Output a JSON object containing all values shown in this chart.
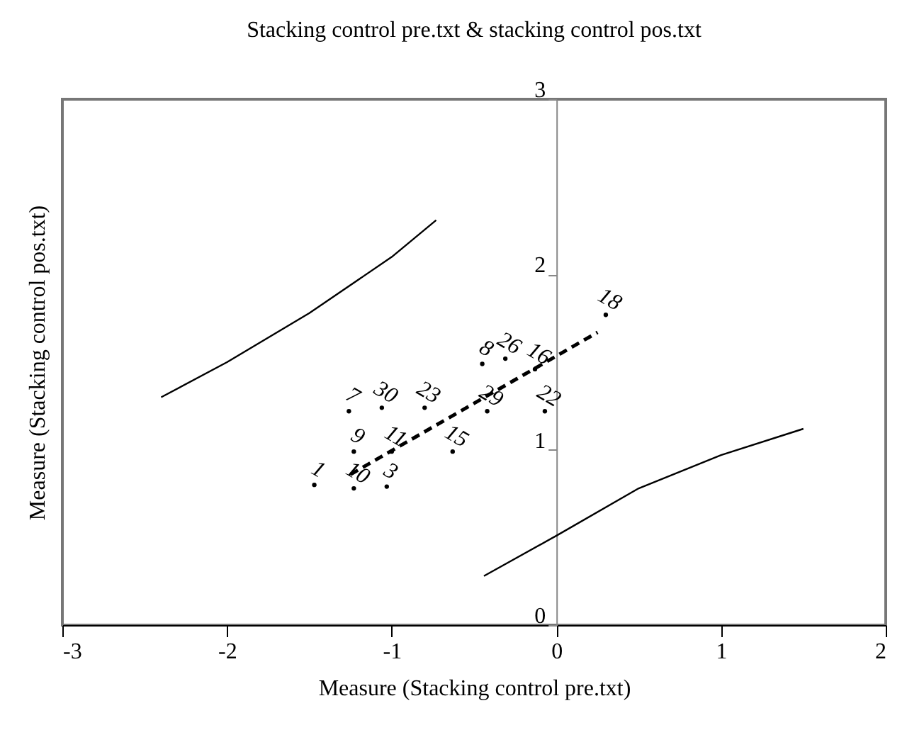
{
  "chart_data": {
    "type": "line",
    "title": "Stacking control pre.txt & stacking control pos.txt",
    "xlabel": "Measure (Stacking control pre.txt)",
    "ylabel": "Measure (Stacking control pos.txt)",
    "xlim": [
      -3,
      2
    ],
    "ylim": [
      0,
      3
    ],
    "xticks": [
      -3,
      -2,
      -1,
      0,
      1,
      2
    ],
    "yticks": [
      0,
      1,
      2,
      3
    ],
    "line_style": "solid",
    "series": [
      {
        "color": "#000000",
        "x": [
          -2.4,
          -2.0,
          -1.5,
          -1.0,
          -0.73
        ],
        "values": [
          1.3,
          1.5,
          1.78,
          2.1,
          2.31
        ]
      },
      {
        "color": "#000000",
        "x": [
          -0.44,
          0,
          0.5,
          1.0,
          1.5
        ],
        "values": [
          0.28,
          0.51,
          0.78,
          0.97,
          1.12
        ]
      },
      {
        "color": "#000000",
        "line_style": "dashed",
        "x": [
          -1.25,
          0.25
        ],
        "values": [
          0.86,
          1.67
        ]
      },
      {
        "type": "scatter",
        "marker": "circle",
        "color": "#000000",
        "x": [
          -1.47,
          -1.23,
          -1.03,
          -1.23,
          -1.0,
          -0.63,
          -1.26,
          -1.06,
          -0.8,
          -0.42,
          -0.07,
          -0.45,
          -0.31,
          -0.13,
          0.3
        ],
        "values": [
          0.8,
          0.78,
          0.79,
          0.99,
          0.99,
          0.99,
          1.22,
          1.24,
          1.24,
          1.22,
          1.22,
          1.49,
          1.52,
          1.46,
          1.77
        ]
      }
    ],
    "annotations": [
      {
        "text": "1",
        "x": -1.47,
        "y": 0.8
      },
      {
        "text": "10",
        "x": -1.23,
        "y": 0.78
      },
      {
        "text": "3",
        "x": -1.03,
        "y": 0.79
      },
      {
        "text": "9",
        "x": -1.23,
        "y": 0.99
      },
      {
        "text": "11",
        "x": -1.0,
        "y": 0.99
      },
      {
        "text": "15",
        "x": -0.63,
        "y": 0.99
      },
      {
        "text": "7",
        "x": -1.26,
        "y": 1.22
      },
      {
        "text": "30",
        "x": -1.06,
        "y": 1.24
      },
      {
        "text": "23",
        "x": -0.8,
        "y": 1.24
      },
      {
        "text": "29",
        "x": -0.42,
        "y": 1.22
      },
      {
        "text": "22",
        "x": -0.07,
        "y": 1.22
      },
      {
        "text": "8",
        "x": -0.45,
        "y": 1.49
      },
      {
        "text": "26",
        "x": -0.31,
        "y": 1.52
      },
      {
        "text": "16",
        "x": -0.13,
        "y": 1.46
      },
      {
        "text": "18",
        "x": 0.3,
        "y": 1.77
      }
    ]
  }
}
